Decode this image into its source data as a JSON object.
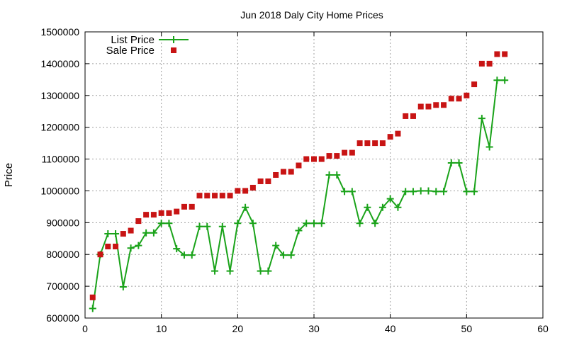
{
  "chart_data": {
    "type": "line",
    "title": "Jun 2018 Daly City Home Prices",
    "xlabel": "",
    "ylabel": "Price",
    "xlim": [
      0,
      60
    ],
    "ylim": [
      600000,
      1500000
    ],
    "xticks": [
      0,
      10,
      20,
      30,
      40,
      50,
      60
    ],
    "yticks": [
      600000,
      700000,
      800000,
      900000,
      1000000,
      1100000,
      1200000,
      1300000,
      1400000,
      1500000
    ],
    "grid": true,
    "legend_position": "top-left",
    "x": [
      1,
      2,
      3,
      4,
      5,
      6,
      7,
      8,
      9,
      10,
      11,
      12,
      13,
      14,
      15,
      16,
      17,
      18,
      19,
      20,
      21,
      22,
      23,
      24,
      25,
      26,
      27,
      28,
      29,
      30,
      31,
      32,
      33,
      34,
      35,
      36,
      37,
      38,
      39,
      40,
      41,
      42,
      43,
      44,
      45,
      46,
      47,
      48,
      49,
      50,
      51,
      52,
      53,
      54,
      55
    ],
    "series": [
      {
        "name": "List Price",
        "style": "linespoints",
        "color": "#1aa31a",
        "values": [
          630000,
          800000,
          865000,
          865000,
          698000,
          820000,
          828000,
          868000,
          868000,
          898000,
          898000,
          818000,
          798000,
          798000,
          888000,
          888000,
          748000,
          888000,
          748000,
          898000,
          948000,
          898000,
          748000,
          748000,
          828000,
          798000,
          798000,
          875000,
          898000,
          898000,
          898000,
          1050000,
          1050000,
          998000,
          998000,
          898000,
          948000,
          898000,
          948000,
          975000,
          948000,
          998000,
          998000,
          1000000,
          1000000,
          998000,
          998000,
          1088000,
          1088000,
          998000,
          998000,
          1228000,
          1138000,
          1348000,
          1348000
        ]
      },
      {
        "name": "Sale Price",
        "style": "points",
        "color": "#c81414",
        "values": [
          665000,
          800000,
          825000,
          825000,
          865000,
          875000,
          905000,
          925000,
          925000,
          930000,
          930000,
          935000,
          950000,
          950000,
          985000,
          985000,
          985000,
          985000,
          985000,
          1000000,
          1000000,
          1010000,
          1030000,
          1030000,
          1050000,
          1060000,
          1060000,
          1080000,
          1100000,
          1100000,
          1100000,
          1110000,
          1110000,
          1120000,
          1120000,
          1150000,
          1150000,
          1150000,
          1150000,
          1170000,
          1180000,
          1235000,
          1235000,
          1265000,
          1265000,
          1270000,
          1270000,
          1290000,
          1290000,
          1300000,
          1335000,
          1400000,
          1400000,
          1430000,
          1430000
        ]
      }
    ]
  }
}
